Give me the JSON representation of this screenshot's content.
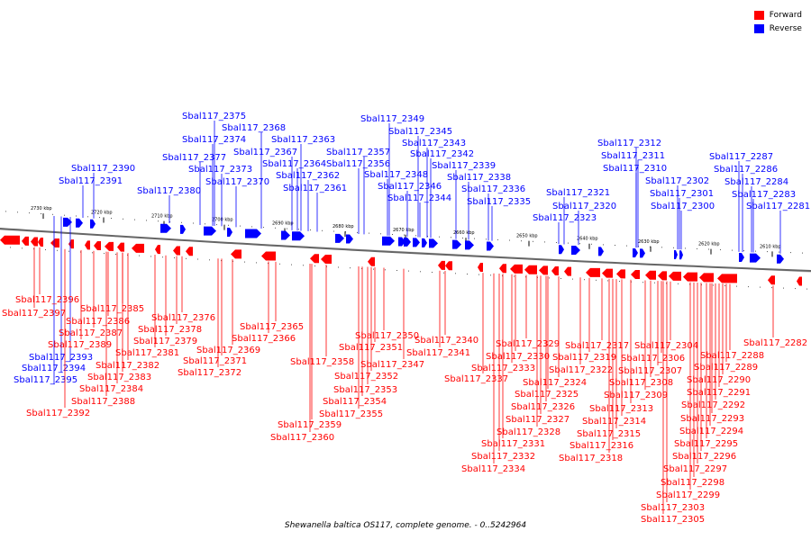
{
  "legend": {
    "forward_label": "Forward",
    "reverse_label": "Reverse",
    "forward_color": "#ff0000",
    "reverse_color": "#0000ff"
  },
  "caption": "Shewanella baltica OS117, complete genome. - 0..5242964",
  "ticks": [
    "2730 kbp",
    "2720 kbp",
    "2710 kbp",
    "2700 kbp",
    "2690 kbp",
    "2680 kbp",
    "2670 kbp",
    "2660 kbp",
    "2650 kbp",
    "2640 kbp",
    "2630 kbp",
    "2620 kbp",
    "2610 kbp"
  ],
  "reverse_genes": [
    "Sbal117_2375",
    "Sbal117_2368",
    "Sbal117_2374",
    "Sbal117_2363",
    "Sbal117_2377",
    "Sbal117_2367",
    "Sbal117_2390",
    "Sbal117_2364",
    "Sbal117_2373",
    "Sbal117_2362",
    "Sbal117_2391",
    "Sbal117_2370",
    "Sbal117_2361",
    "Sbal117_2380",
    "Sbal117_2349",
    "Sbal117_2345",
    "Sbal117_2343",
    "Sbal117_2342",
    "Sbal117_2357",
    "Sbal117_2356",
    "Sbal117_2339",
    "Sbal117_2348",
    "Sbal117_2338",
    "Sbal117_2346",
    "Sbal117_2336",
    "Sbal117_2344",
    "Sbal117_2335",
    "Sbal117_2312",
    "Sbal117_2311",
    "Sbal117_2310",
    "Sbal117_2302",
    "Sbal117_2321",
    "Sbal117_2301",
    "Sbal117_2320",
    "Sbal117_2300",
    "Sbal117_2323",
    "Sbal117_2287",
    "Sbal117_2286",
    "Sbal117_2284",
    "Sbal117_2283",
    "Sbal117_2281",
    "Sbal117_2393",
    "Sbal117_2394",
    "Sbal117_2395"
  ],
  "forward_genes": [
    "Sbal117_2396",
    "Sbal117_2397",
    "Sbal117_2385",
    "Sbal117_2386",
    "Sbal117_2387",
    "Sbal117_2389",
    "Sbal117_2382",
    "Sbal117_2383",
    "Sbal117_2384",
    "Sbal117_2388",
    "Sbal117_2392",
    "Sbal117_2376",
    "Sbal117_2378",
    "Sbal117_2379",
    "Sbal117_2381",
    "Sbal117_2369",
    "Sbal117_2371",
    "Sbal117_2372",
    "Sbal117_2365",
    "Sbal117_2366",
    "Sbal117_2350",
    "Sbal117_2351",
    "Sbal117_2358",
    "Sbal117_2347",
    "Sbal117_2352",
    "Sbal117_2353",
    "Sbal117_2354",
    "Sbal117_2355",
    "Sbal117_2359",
    "Sbal117_2360",
    "Sbal117_2340",
    "Sbal117_2341",
    "Sbal117_2337",
    "Sbal117_2329",
    "Sbal117_2330",
    "Sbal117_2333",
    "Sbal117_2331",
    "Sbal117_2332",
    "Sbal117_2334",
    "Sbal117_2324",
    "Sbal117_2325",
    "Sbal117_2326",
    "Sbal117_2327",
    "Sbal117_2328",
    "Sbal117_2322",
    "Sbal117_2317",
    "Sbal117_2319",
    "Sbal117_2313",
    "Sbal117_2314",
    "Sbal117_2315",
    "Sbal117_2316",
    "Sbal117_2318",
    "Sbal117_2304",
    "Sbal117_2306",
    "Sbal117_2307",
    "Sbal117_2308",
    "Sbal117_2309",
    "Sbal117_2303",
    "Sbal117_2305",
    "Sbal117_2288",
    "Sbal117_2289",
    "Sbal117_2290",
    "Sbal117_2291",
    "Sbal117_2292",
    "Sbal117_2293",
    "Sbal117_2294",
    "Sbal117_2295",
    "Sbal117_2296",
    "Sbal117_2297",
    "Sbal117_2298",
    "Sbal117_2299",
    "Sbal117_2282"
  ]
}
